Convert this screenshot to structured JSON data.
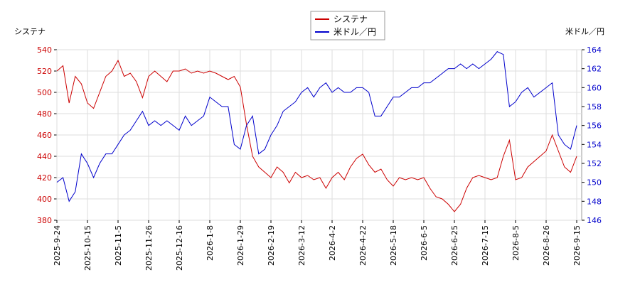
{
  "chart_data": {
    "type": "line",
    "ylabel": "システナ",
    "y2label": "米ドル／円",
    "categories": [
      "2025-9-24",
      null,
      null,
      null,
      null,
      "2025-10-15",
      null,
      null,
      null,
      null,
      "2025-11-5",
      null,
      null,
      null,
      null,
      "2025-11-26",
      null,
      null,
      null,
      null,
      "2025-12-16",
      null,
      null,
      null,
      null,
      "2026-1-8",
      null,
      null,
      null,
      null,
      "2026-1-29",
      null,
      null,
      null,
      null,
      "2026-2-19",
      null,
      null,
      null,
      null,
      "2026-3-12",
      null,
      null,
      null,
      null,
      "2026-4-2",
      null,
      null,
      null,
      null,
      "2026-4-22",
      null,
      null,
      null,
      null,
      "2026-5-18",
      null,
      null,
      null,
      null,
      "2026-6-5",
      null,
      null,
      null,
      null,
      "2026-6-25",
      null,
      null,
      null,
      null,
      "2026-7-15",
      null,
      null,
      null,
      null,
      "2026-8-5",
      null,
      null,
      null,
      null,
      "2026-8-26",
      null,
      null,
      null,
      null,
      "2026-9-15"
    ],
    "series": [
      {
        "name": "システナ",
        "color": "#cc0000",
        "axis": "y",
        "values": [
          520,
          525,
          490,
          515,
          508,
          490,
          485,
          500,
          515,
          520,
          530,
          515,
          518,
          510,
          495,
          515,
          520,
          515,
          510,
          520,
          520,
          522,
          518,
          520,
          518,
          520,
          518,
          515,
          512,
          515,
          505,
          470,
          440,
          430,
          425,
          420,
          430,
          425,
          415,
          425,
          420,
          422,
          418,
          420,
          410,
          420,
          425,
          418,
          430,
          438,
          442,
          432,
          425,
          428,
          418,
          412,
          420,
          418,
          420,
          418,
          420,
          410,
          402,
          400,
          395,
          388,
          395,
          410,
          420,
          422,
          420,
          418,
          420,
          440,
          455,
          418,
          420,
          430,
          435,
          440,
          445,
          460,
          445,
          430,
          425,
          440
        ]
      },
      {
        "name": "米ドル／円",
        "color": "#0000cc",
        "axis": "y2",
        "values": [
          150,
          150.5,
          148,
          149,
          153,
          152,
          150.5,
          152,
          153,
          153,
          154,
          155,
          155.5,
          156.5,
          157.5,
          156,
          156.5,
          156,
          156.5,
          156,
          155.5,
          157,
          156,
          156.5,
          157,
          159,
          158.5,
          158,
          158,
          154,
          153.5,
          156,
          157,
          153,
          153.5,
          155,
          156,
          157.5,
          158,
          158.5,
          159.5,
          160,
          159,
          160,
          160.5,
          159.5,
          160,
          159.5,
          159.5,
          160,
          160,
          159.5,
          157,
          157,
          158,
          159,
          159,
          159.5,
          160,
          160,
          160.5,
          160.5,
          161,
          161.5,
          162,
          162,
          162.5,
          162,
          162.5,
          162,
          162.5,
          163,
          163.8,
          163.5,
          158,
          158.5,
          159.5,
          160,
          159,
          159.5,
          160,
          160.5,
          155,
          154,
          153.5,
          156
        ]
      }
    ],
    "ylim": [
      380,
      540
    ],
    "yticks": [
      380,
      400,
      420,
      440,
      460,
      480,
      500,
      520,
      540
    ],
    "y2lim": [
      146,
      164
    ],
    "y2ticks": [
      146,
      148,
      150,
      152,
      154,
      156,
      158,
      160,
      162,
      164
    ],
    "grid": true
  }
}
